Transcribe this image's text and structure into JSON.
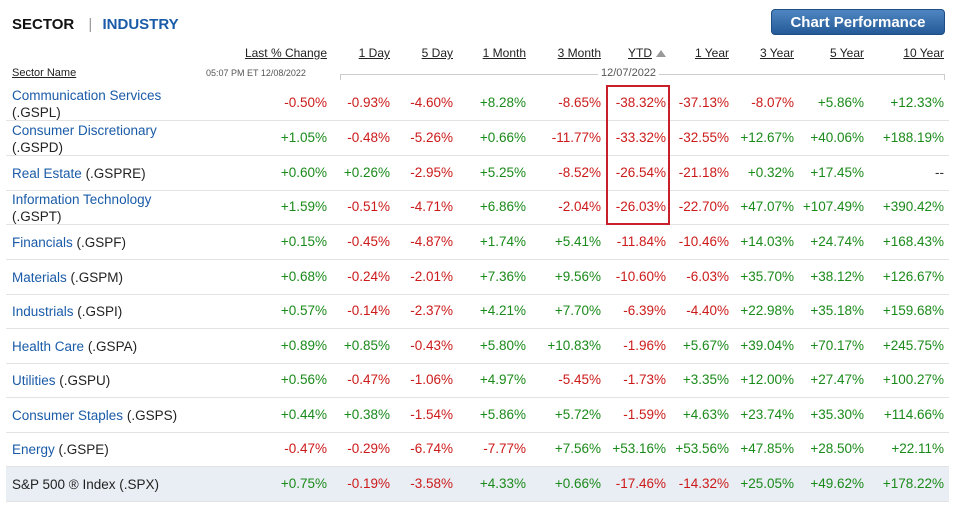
{
  "tabs": {
    "sector": "SECTOR",
    "separator": "|",
    "industry": "INDUSTRY"
  },
  "chart_button": "Chart Performance",
  "columns": [
    "Last % Change",
    "1 Day",
    "5 Day",
    "1 Month",
    "3 Month",
    "YTD",
    "1 Year",
    "3 Year",
    "5 Year",
    "10 Year"
  ],
  "sector_name_header": "Sector Name",
  "timestamp": "05:07 PM ET 12/08/2022",
  "period_date": "12/07/2022",
  "sorted_column": "YTD",
  "rows": [
    {
      "name": "Communication Services",
      "symbol": "(.GSPL)",
      "values": [
        "-0.50%",
        "-0.93%",
        "-4.60%",
        "+8.28%",
        "-8.65%",
        "-38.32%",
        "-37.13%",
        "-8.07%",
        "+5.86%",
        "+12.33%"
      ]
    },
    {
      "name": "Consumer Discretionary",
      "symbol": "(.GSPD)",
      "values": [
        "+1.05%",
        "-0.48%",
        "-5.26%",
        "+0.66%",
        "-11.77%",
        "-33.32%",
        "-32.55%",
        "+12.67%",
        "+40.06%",
        "+188.19%"
      ]
    },
    {
      "name": "Real Estate",
      "symbol": "(.GSPRE)",
      "values": [
        "+0.60%",
        "+0.26%",
        "-2.95%",
        "+5.25%",
        "-8.52%",
        "-26.54%",
        "-21.18%",
        "+0.32%",
        "+17.45%",
        "--"
      ]
    },
    {
      "name": "Information Technology",
      "symbol": "(.GSPT)",
      "values": [
        "+1.59%",
        "-0.51%",
        "-4.71%",
        "+6.86%",
        "-2.04%",
        "-26.03%",
        "-22.70%",
        "+47.07%",
        "+107.49%",
        "+390.42%"
      ]
    },
    {
      "name": "Financials",
      "symbol": "(.GSPF)",
      "values": [
        "+0.15%",
        "-0.45%",
        "-4.87%",
        "+1.74%",
        "+5.41%",
        "-11.84%",
        "-10.46%",
        "+14.03%",
        "+24.74%",
        "+168.43%"
      ]
    },
    {
      "name": "Materials",
      "symbol": "(.GSPM)",
      "values": [
        "+0.68%",
        "-0.24%",
        "-2.01%",
        "+7.36%",
        "+9.56%",
        "-10.60%",
        "-6.03%",
        "+35.70%",
        "+38.12%",
        "+126.67%"
      ]
    },
    {
      "name": "Industrials",
      "symbol": "(.GSPI)",
      "values": [
        "+0.57%",
        "-0.14%",
        "-2.37%",
        "+4.21%",
        "+7.70%",
        "-6.39%",
        "-4.40%",
        "+22.98%",
        "+35.18%",
        "+159.68%"
      ]
    },
    {
      "name": "Health Care",
      "symbol": "(.GSPA)",
      "values": [
        "+0.89%",
        "+0.85%",
        "-0.43%",
        "+5.80%",
        "+10.83%",
        "-1.96%",
        "+5.67%",
        "+39.04%",
        "+70.17%",
        "+245.75%"
      ]
    },
    {
      "name": "Utilities",
      "symbol": "(.GSPU)",
      "values": [
        "+0.56%",
        "-0.47%",
        "-1.06%",
        "+4.97%",
        "-5.45%",
        "-1.73%",
        "+3.35%",
        "+12.00%",
        "+27.47%",
        "+100.27%"
      ]
    },
    {
      "name": "Consumer Staples",
      "symbol": "(.GSPS)",
      "values": [
        "+0.44%",
        "+0.38%",
        "-1.54%",
        "+5.86%",
        "+5.72%",
        "-1.59%",
        "+4.63%",
        "+23.74%",
        "+35.30%",
        "+114.66%"
      ]
    },
    {
      "name": "Energy",
      "symbol": "(.GSPE)",
      "values": [
        "-0.47%",
        "-0.29%",
        "-6.74%",
        "-7.77%",
        "+7.56%",
        "+53.16%",
        "+53.56%",
        "+47.85%",
        "+28.50%",
        "+22.11%"
      ]
    },
    {
      "name": "S&P 500 ® Index",
      "symbol": "(.SPX)",
      "values": [
        "+0.75%",
        "-0.19%",
        "-3.58%",
        "+4.33%",
        "+0.66%",
        "-17.46%",
        "-14.32%",
        "+25.05%",
        "+49.62%",
        "+178.22%"
      ]
    }
  ],
  "colors": {
    "positive": "#1a8a1a",
    "negative": "#cc1a1a",
    "link": "#1a5ba8",
    "highlight_box": "#c8202a"
  }
}
